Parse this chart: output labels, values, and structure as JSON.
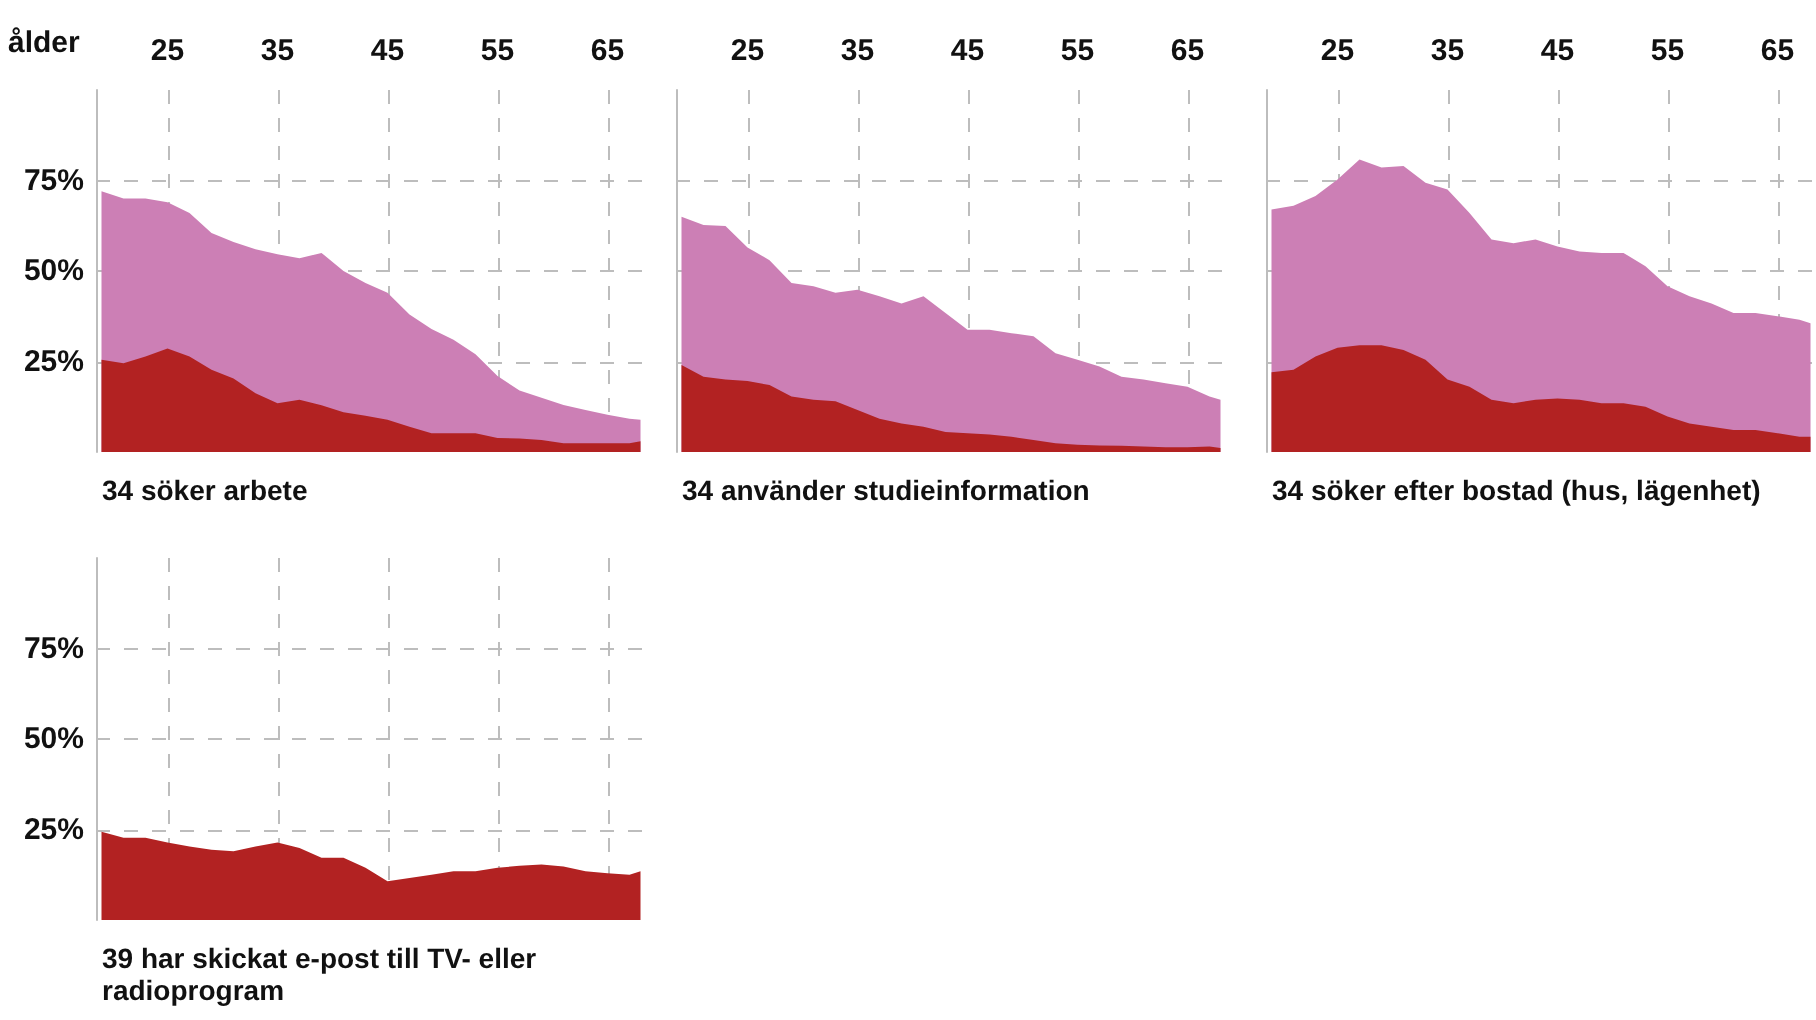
{
  "chart_data": [
    {
      "type": "area",
      "title": "34 söker arbete",
      "xlabel": "ålder",
      "x": [
        19,
        21,
        23,
        25,
        27,
        29,
        31,
        33,
        35,
        37,
        39,
        41,
        43,
        45,
        47,
        49,
        51,
        53,
        55,
        57,
        59,
        61,
        63,
        65,
        67,
        68
      ],
      "xlim": [
        18.5,
        68.5
      ],
      "xticks": [
        25,
        35,
        45,
        55,
        65
      ],
      "ylim": [
        0,
        100
      ],
      "yticks": [
        {
          "value": 25,
          "label": "25%"
        },
        {
          "value": 50,
          "label": "50%"
        },
        {
          "value": 75,
          "label": "75%"
        }
      ],
      "grid": true,
      "series": [
        {
          "color": "#cc7fb5",
          "values": [
            72,
            70,
            70,
            69,
            66,
            60.5,
            58,
            56,
            54.6,
            53.5,
            55,
            50,
            46.7,
            44,
            38,
            34,
            31,
            27,
            21,
            17,
            15,
            13,
            11.6,
            10.3,
            9.2,
            8.9
          ]
        },
        {
          "color": "#b22222",
          "values": [
            25.5,
            24.5,
            26.4,
            28.6,
            26.4,
            22.7,
            20.3,
            16.2,
            13.5,
            14.4,
            12.9,
            11,
            10,
            8.9,
            7,
            5.2,
            5.2,
            5.2,
            3.9,
            3.7,
            3.3,
            2.4,
            2.4,
            2.4,
            2.4,
            3
          ]
        }
      ]
    },
    {
      "type": "area",
      "title": "34 använder studieinformation",
      "x": [
        19,
        21,
        23,
        25,
        27,
        29,
        31,
        33,
        35,
        37,
        39,
        41,
        43,
        45,
        47,
        49,
        51,
        53,
        55,
        57,
        59,
        61,
        63,
        65,
        67,
        68
      ],
      "xlim": [
        18.5,
        68.5
      ],
      "xticks": [
        25,
        35,
        45,
        55,
        65
      ],
      "ylim": [
        0,
        100
      ],
      "yticks": [
        {
          "value": 25,
          "label": null
        },
        {
          "value": 50,
          "label": null
        },
        {
          "value": 75,
          "label": null
        }
      ],
      "grid": true,
      "tick_labels": "x",
      "series": [
        {
          "color": "#cc7fb5",
          "values": [
            65,
            62.7,
            62.4,
            56.5,
            53,
            46.7,
            45.8,
            44,
            44.8,
            43,
            41,
            43,
            38.4,
            33.8,
            33.8,
            32.8,
            32,
            27.3,
            25.5,
            23.6,
            20.8,
            20,
            19,
            18,
            15.3,
            14.4
          ]
        },
        {
          "color": "#b22222",
          "values": [
            24,
            20.8,
            20,
            19.6,
            18.5,
            15.3,
            14.4,
            14,
            11.6,
            9.2,
            7.9,
            7,
            5.5,
            5.2,
            4.8,
            4.2,
            3.3,
            2.4,
            2,
            1.8,
            1.7,
            1.5,
            1.3,
            1.3,
            1.5,
            1.1
          ]
        }
      ]
    },
    {
      "type": "area",
      "title": "34 söker efter bostad (hus, lägenhet)",
      "x": [
        19,
        21,
        23,
        25,
        27,
        29,
        31,
        33,
        35,
        37,
        39,
        41,
        43,
        45,
        47,
        49,
        51,
        53,
        55,
        57,
        59,
        61,
        63,
        65,
        67,
        68
      ],
      "xlim": [
        18.5,
        68.5
      ],
      "xticks": [
        25,
        35,
        45,
        55,
        65
      ],
      "ylim": [
        0,
        100
      ],
      "yticks": [
        {
          "value": 25,
          "label": null
        },
        {
          "value": 50,
          "label": null
        },
        {
          "value": 75,
          "label": null
        }
      ],
      "grid": true,
      "tick_labels": "x",
      "series": [
        {
          "color": "#cc7fb5",
          "values": [
            67,
            68,
            70.7,
            75.3,
            80.8,
            78.6,
            79,
            74.4,
            72.5,
            66,
            58.7,
            57.7,
            58.7,
            56.8,
            55.4,
            55,
            55,
            51.3,
            45.8,
            43,
            41,
            38.4,
            38.4,
            37.5,
            36.5,
            35.6
          ]
        },
        {
          "color": "#b22222",
          "values": [
            22,
            22.7,
            26.4,
            28.8,
            29.5,
            29.5,
            28.2,
            25.5,
            20,
            18,
            14.4,
            13.5,
            14.4,
            14.8,
            14.4,
            13.5,
            13.5,
            12.5,
            9.8,
            7.9,
            7,
            6.1,
            6.1,
            5.2,
            4.2,
            4.2
          ]
        }
      ]
    },
    {
      "type": "area",
      "title": "39 har skickat e-post till TV- eller radioprogram",
      "x": [
        19,
        21,
        23,
        25,
        27,
        29,
        31,
        33,
        35,
        37,
        39,
        41,
        43,
        45,
        47,
        49,
        51,
        53,
        55,
        57,
        59,
        61,
        63,
        65,
        67,
        68
      ],
      "xlim": [
        18.5,
        68.5
      ],
      "xticks": [
        25,
        35,
        45,
        55,
        65
      ],
      "ylim": [
        0,
        100
      ],
      "yticks": [
        {
          "value": 25,
          "label": "25%"
        },
        {
          "value": 50,
          "label": "50%"
        },
        {
          "value": 75,
          "label": "75%"
        }
      ],
      "grid": true,
      "tick_labels": "y",
      "series": [
        {
          "color": "#b22222",
          "values": [
            24.4,
            22.7,
            22.7,
            21.4,
            20.3,
            19.4,
            19,
            20.3,
            21.4,
            19.9,
            17.2,
            17.2,
            14.4,
            10.7,
            11.6,
            12.5,
            13.5,
            13.5,
            14.4,
            15,
            15.3,
            14.8,
            13.5,
            12.9,
            12.5,
            13.5
          ]
        }
      ]
    }
  ]
}
